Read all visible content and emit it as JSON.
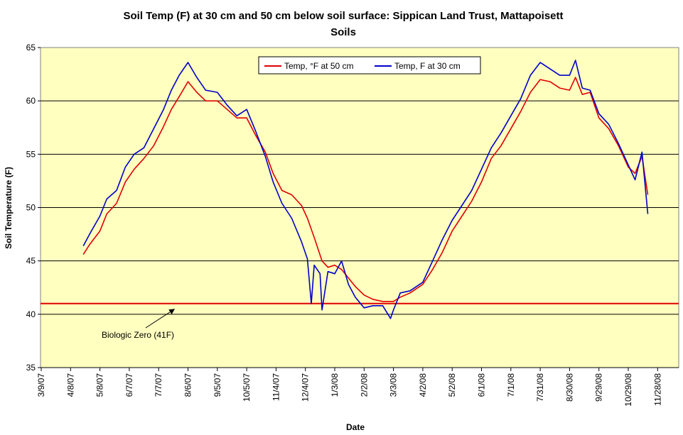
{
  "chart_data": {
    "type": "line",
    "title_line1": "Soil Temp (F) at 30 cm and 50 cm below soil surface: Sippican Land Trust, Mattapoisett",
    "title_line2": "Soils",
    "xlabel": "Date",
    "ylabel": "Soil Temperature (F)",
    "ylim": [
      35,
      65
    ],
    "yticks": [
      "35",
      "40",
      "45",
      "50",
      "55",
      "60",
      "65"
    ],
    "x_tick_labels": [
      "3/9/07",
      "4/8/07",
      "5/8/07",
      "6/7/07",
      "7/7/07",
      "8/6/07",
      "9/5/07",
      "10/5/07",
      "11/4/07",
      "12/4/07",
      "1/3/08",
      "2/2/08",
      "3/3/08",
      "4/2/08",
      "5/2/08",
      "6/1/08",
      "7/1/08",
      "7/31/08",
      "8/30/08",
      "9/29/08",
      "10/29/08",
      "11/28/08"
    ],
    "grid": "horizontal",
    "legend_position": "top-center",
    "series": [
      {
        "name": "Temp, °F at 50 cm",
        "color": "#e00000",
        "points": [
          [
            "4/21/07",
            45.6
          ],
          [
            "4/28/07",
            46.6
          ],
          [
            "5/8/07",
            47.8
          ],
          [
            "5/15/07",
            49.4
          ],
          [
            "5/25/07",
            50.4
          ],
          [
            "6/3/07",
            52.4
          ],
          [
            "6/12/07",
            53.6
          ],
          [
            "6/22/07",
            54.6
          ],
          [
            "7/2/07",
            55.8
          ],
          [
            "7/12/07",
            57.6
          ],
          [
            "7/20/07",
            59.2
          ],
          [
            "7/28/07",
            60.4
          ],
          [
            "8/6/07",
            61.8
          ],
          [
            "8/15/07",
            60.8
          ],
          [
            "8/24/07",
            60.0
          ],
          [
            "9/5/07",
            60.0
          ],
          [
            "9/15/07",
            59.2
          ],
          [
            "9/25/07",
            58.4
          ],
          [
            "10/5/07",
            58.4
          ],
          [
            "10/14/07",
            56.8
          ],
          [
            "10/24/07",
            55.2
          ],
          [
            "11/1/07",
            53.2
          ],
          [
            "11/10/07",
            51.6
          ],
          [
            "11/20/07",
            51.2
          ],
          [
            "11/30/07",
            50.2
          ],
          [
            "12/6/07",
            49.0
          ],
          [
            "12/13/07",
            47.2
          ],
          [
            "12/21/07",
            45.0
          ],
          [
            "12/27/07",
            44.4
          ],
          [
            "1/3/08",
            44.6
          ],
          [
            "1/10/08",
            44.2
          ],
          [
            "1/17/08",
            43.4
          ],
          [
            "1/24/08",
            42.6
          ],
          [
            "2/2/08",
            41.8
          ],
          [
            "2/11/08",
            41.4
          ],
          [
            "2/21/08",
            41.2
          ],
          [
            "3/3/08",
            41.2
          ],
          [
            "3/10/08",
            41.6
          ],
          [
            "3/20/08",
            42.0
          ],
          [
            "4/2/08",
            42.8
          ],
          [
            "4/12/08",
            44.2
          ],
          [
            "4/22/08",
            45.8
          ],
          [
            "5/2/08",
            47.8
          ],
          [
            "5/12/08",
            49.2
          ],
          [
            "5/22/08",
            50.6
          ],
          [
            "6/1/08",
            52.4
          ],
          [
            "6/11/08",
            54.6
          ],
          [
            "6/21/08",
            55.8
          ],
          [
            "7/1/08",
            57.4
          ],
          [
            "7/11/08",
            59.0
          ],
          [
            "7/21/08",
            60.8
          ],
          [
            "7/31/08",
            62.0
          ],
          [
            "8/10/08",
            61.8
          ],
          [
            "8/20/08",
            61.2
          ],
          [
            "8/30/08",
            61.0
          ],
          [
            "9/5/08",
            62.2
          ],
          [
            "9/12/08",
            60.6
          ],
          [
            "9/20/08",
            60.8
          ],
          [
            "9/29/08",
            58.4
          ],
          [
            "10/9/08",
            57.4
          ],
          [
            "10/19/08",
            55.8
          ],
          [
            "10/29/08",
            53.8
          ],
          [
            "11/5/08",
            53.2
          ],
          [
            "11/12/08",
            54.8
          ],
          [
            "11/18/08",
            51.2
          ]
        ]
      },
      {
        "name": "Temp, F at 30 cm",
        "color": "#0000cc",
        "points": [
          [
            "4/21/07",
            46.4
          ],
          [
            "4/28/07",
            47.6
          ],
          [
            "5/8/07",
            49.2
          ],
          [
            "5/15/07",
            50.8
          ],
          [
            "5/25/07",
            51.6
          ],
          [
            "6/3/07",
            53.8
          ],
          [
            "6/12/07",
            55.0
          ],
          [
            "6/22/07",
            55.6
          ],
          [
            "7/2/07",
            57.4
          ],
          [
            "7/12/07",
            59.2
          ],
          [
            "7/20/07",
            61.0
          ],
          [
            "7/28/07",
            62.4
          ],
          [
            "8/6/07",
            63.6
          ],
          [
            "8/15/07",
            62.2
          ],
          [
            "8/24/07",
            61.0
          ],
          [
            "9/5/07",
            60.8
          ],
          [
            "9/15/07",
            59.6
          ],
          [
            "9/25/07",
            58.6
          ],
          [
            "10/5/07",
            59.2
          ],
          [
            "10/14/07",
            57.2
          ],
          [
            "10/24/07",
            54.8
          ],
          [
            "11/1/07",
            52.4
          ],
          [
            "11/10/07",
            50.4
          ],
          [
            "11/20/07",
            49.0
          ],
          [
            "11/30/07",
            46.8
          ],
          [
            "12/6/07",
            45.2
          ],
          [
            "12/10/07",
            41.0
          ],
          [
            "12/13/07",
            44.6
          ],
          [
            "12/19/07",
            43.8
          ],
          [
            "12/21/07",
            40.4
          ],
          [
            "12/27/07",
            44.0
          ],
          [
            "1/3/08",
            43.8
          ],
          [
            "1/10/08",
            45.0
          ],
          [
            "1/17/08",
            42.8
          ],
          [
            "1/24/08",
            41.6
          ],
          [
            "2/2/08",
            40.6
          ],
          [
            "2/11/08",
            40.8
          ],
          [
            "2/21/08",
            40.8
          ],
          [
            "2/29/08",
            39.6
          ],
          [
            "3/3/08",
            40.4
          ],
          [
            "3/10/08",
            42.0
          ],
          [
            "3/20/08",
            42.2
          ],
          [
            "4/2/08",
            43.0
          ],
          [
            "4/12/08",
            45.0
          ],
          [
            "4/22/08",
            47.0
          ],
          [
            "5/2/08",
            48.8
          ],
          [
            "5/12/08",
            50.2
          ],
          [
            "5/22/08",
            51.6
          ],
          [
            "6/1/08",
            53.6
          ],
          [
            "6/11/08",
            55.6
          ],
          [
            "6/21/08",
            57.0
          ],
          [
            "7/1/08",
            58.6
          ],
          [
            "7/11/08",
            60.2
          ],
          [
            "7/21/08",
            62.4
          ],
          [
            "7/31/08",
            63.6
          ],
          [
            "8/10/08",
            63.0
          ],
          [
            "8/20/08",
            62.4
          ],
          [
            "8/30/08",
            62.4
          ],
          [
            "9/5/08",
            63.8
          ],
          [
            "9/12/08",
            61.2
          ],
          [
            "9/20/08",
            61.0
          ],
          [
            "9/29/08",
            58.8
          ],
          [
            "10/9/08",
            57.8
          ],
          [
            "10/19/08",
            56.0
          ],
          [
            "10/29/08",
            54.0
          ],
          [
            "11/5/08",
            52.6
          ],
          [
            "11/12/08",
            55.2
          ],
          [
            "11/18/08",
            49.4
          ]
        ]
      }
    ],
    "reference_line": {
      "value": 41,
      "color": "#e00000"
    },
    "annotation": {
      "text": "Biologic Zero (41F)",
      "points_to_date": "7/23/07",
      "points_to_value": 41
    },
    "colors": {
      "plot_background": "#ffffc0",
      "gridline": "#000000",
      "page_background": "#ffffff"
    }
  }
}
